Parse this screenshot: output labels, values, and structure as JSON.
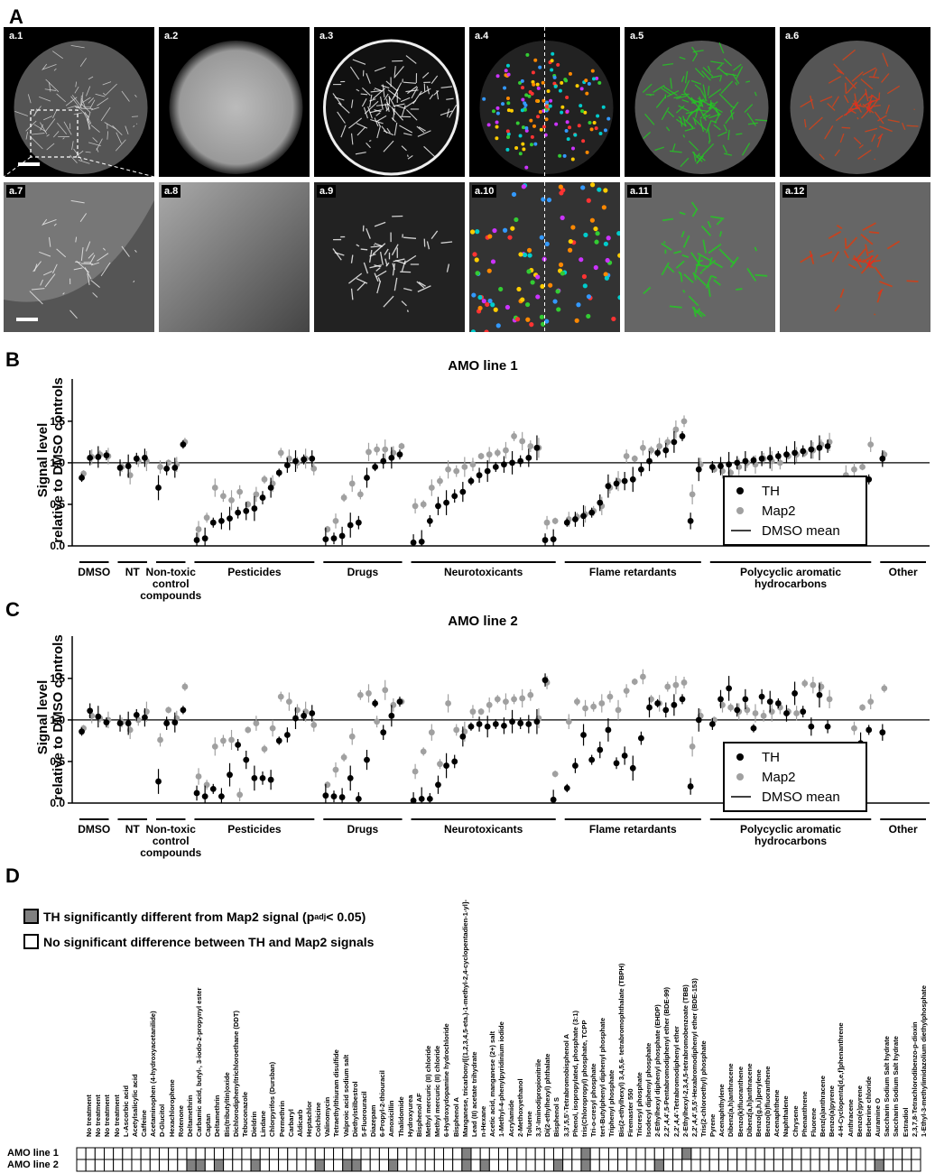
{
  "panel_a": {
    "letter": "A",
    "tiles_top": [
      "a.1",
      "a.2",
      "a.3",
      "a.4",
      "a.5",
      "a.6"
    ],
    "tiles_bottom": [
      "a.7",
      "a.8",
      "a.9",
      "a.10",
      "a.11",
      "a.12"
    ]
  },
  "panel_b": {
    "letter": "B",
    "title": "AMO line 1"
  },
  "panel_c": {
    "letter": "C",
    "title": "AMO line 2"
  },
  "panel_d": {
    "letter": "D",
    "legend_sig": "TH significantly different from Map2 signal (p",
    "legend_sig_sub": "adj",
    "legend_sig_end": " < 0.05)",
    "legend_nonsig": "No significant difference between TH and Map2 signals",
    "row1": "AMO line 1",
    "row2": "AMO line 2"
  },
  "ylabel_line1": "Signal level",
  "ylabel_line2": "relative to DMSO controls",
  "legend": {
    "th": "TH",
    "map2": "Map2",
    "dmso": "DMSO mean"
  },
  "colors": {
    "th": "#000000",
    "map2": "#a0a0a0",
    "sig": "#808080"
  },
  "groups": [
    {
      "label": "DMSO",
      "n": 4
    },
    {
      "label": "NT",
      "n": 4
    },
    {
      "label": "Non-toxic control compounds",
      "n": 4
    },
    {
      "label": "Pesticides",
      "n": 15
    },
    {
      "label": "Drugs",
      "n": 10
    },
    {
      "label": "Neurotoxicants",
      "n": 18
    },
    {
      "label": "Flame retardants",
      "n": 17
    },
    {
      "label": "Polycyclic aromatic hydrocarbons",
      "n": 20
    },
    {
      "label": "Other",
      "n": 6
    }
  ],
  "compounds": [
    "No treatment",
    "No treatment",
    "No treatment",
    "No treatment",
    "L-Ascorbic acid",
    "Acetylsalicylic acid",
    "Caffeine",
    "Acetaminophen (4-hydroxyacetanilide)",
    "D-Glucitol",
    "Hexachlorophene",
    "Rotenone",
    "Deltamethrin",
    "Carbamic acid, butyl-, 3-iodo-2-propynyl ester",
    "Captan",
    "Deltamethrin",
    "Bis(tributyltin)oxide",
    "Dichlorodiphenyltrichloroethane (DDT)",
    "Tebuconazole",
    "Dieldrin",
    "Lindane",
    "Chlorpyrifos (Dursban)",
    "Permethrin",
    "Carbaryl",
    "Aldicarb",
    "Heptachlor",
    "Colchicine",
    "Valinomycin",
    "Tetraethylthiuram disulfide",
    "Valproic acid sodium salt",
    "Diethylstilbestrol",
    "5-Fluorouracil",
    "Diazepam",
    "6-Propyl-2-thiouracil",
    "Amoxicillin",
    "Thalidomide",
    "Hydroxyurea",
    "Bisphenol AF",
    "Methyl mercuric (II) chloride",
    "Methyl mercuric (II) chloride",
    "6-Hydroxydopamine hydrochloride",
    "Bisphenol A",
    "Manganese, tricarbonyl[(1,2,3,4,5-eta.)-1-methyl-2,4-cyclopentadien-1-yl]-",
    "Lead (II) acetate trihydrate",
    "n-Hexane",
    "Acetic acid, manganese (2+) salt",
    "1-Methyl-4-phenylpyridinium iodide",
    "Acrylamide",
    "2-Methoxyethanol",
    "Toluene",
    "3,3'-Iminodipropionitrile",
    "Di(2-ethylhexyl) phthalate",
    "Bisphenol S",
    "3,3',5,5'-Tetrabromobisphenol A",
    "Phenol, isopropylated, phosphate (3:1)",
    "tris(Chloropropyl) phosphate, TCPP",
    "Tri-o-cresyl phosphate",
    "tert-Butylphenyl diphenyl phosphate",
    "Triphenyl phosphate",
    "Bis(2-ethylhexyl) 3,4,5,6- tetrabromophthalate (TBPH)",
    "Firemaster 550",
    "Tricresyl phosphate",
    "Isodecyl diphenyl phosphate",
    "2-Ethylhexyl diphenyl phosphate (EHDP)",
    "2,2',4,4',5-Pentabromodiphenyl ether (BDE-99)",
    "2,2',4,4'-Tetrabromodiphenyl ether",
    "2-Ethylhexyl-2,3,4,5-tetrabromobenzoate (TBB)",
    "2,2',4,4',5,5'-Hexabromodiphenyl ether (BDE-153)",
    "Tris(2-chloroethyl) phosphate",
    "Pyrene",
    "Acenaphthylene",
    "Dibenz(a,h)anthracene",
    "Benzo(k)fluoranthene",
    "Dibenz[a,h]anthracene",
    "Benzo[g,h,i]perylene",
    "Benzo(b)fluoranthene",
    "Acenaphthene",
    "Naphthalene",
    "Chrysene",
    "Phenanthrene",
    "Fluorene",
    "Benz(a)anthracene",
    "Benzo(a)pyrene",
    "4-H-Cyclopenta[d,e,f]phenanthrene",
    "Anthracene",
    "Benzo(e)pyrene",
    "Berberine chloride",
    "Auramine O",
    "Saccharin Sodium Salt hydrate",
    "Saccharin Sodium Salt hydrate",
    "Estradiol",
    "2,3,7,8-Tetrachlorodibenzo-p-dioxin",
    "1-Ethyl-3-methylimidazolium diethylphosphate"
  ],
  "sig_line1": [
    42,
    55,
    66
  ],
  "sig_line2": [
    12,
    13,
    15,
    19,
    26,
    29,
    30,
    34,
    42,
    44,
    52,
    55,
    63,
    87
  ],
  "chart_data": [
    {
      "type": "scatter",
      "title": "AMO line 1",
      "ylabel": "Signal level relative to DMSO controls",
      "ylim": [
        0,
        1.9
      ],
      "yticks": [
        0.0,
        0.5,
        1.0,
        1.5
      ],
      "reference_line": {
        "name": "DMSO mean",
        "y": 1.0
      },
      "series": [
        {
          "name": "TH",
          "values": [
            0.82,
            1.06,
            1.07,
            1.09,
            0.94,
            0.96,
            1.05,
            1.06,
            0.7,
            0.93,
            0.94,
            1.22,
            0.07,
            0.09,
            0.28,
            0.3,
            0.33,
            0.4,
            0.42,
            0.45,
            0.58,
            0.7,
            0.88,
            0.97,
            1.02,
            1.04,
            1.05,
            0.08,
            0.09,
            0.12,
            0.25,
            0.28,
            0.82,
            0.95,
            1.02,
            1.06,
            1.1,
            0.04,
            0.05,
            0.3,
            0.48,
            0.52,
            0.6,
            0.65,
            0.78,
            0.85,
            0.9,
            0.95,
            0.98,
            1.0,
            1.02,
            1.06,
            1.18,
            0.07,
            0.08,
            0.28,
            0.32,
            0.36,
            0.4,
            0.52,
            0.72,
            0.75,
            0.78,
            0.8,
            0.92,
            1.02,
            1.12,
            1.15,
            1.25,
            1.32,
            0.3,
            0.92,
            0.95,
            0.96,
            0.98,
            1.0,
            1.02,
            1.03,
            1.05,
            1.06,
            1.08,
            1.1,
            1.12,
            1.14,
            1.16,
            1.18,
            1.2,
            0.05,
            0.22,
            0.45,
            0.62,
            0.8,
            1.05
          ]
        },
        {
          "name": "Map2",
          "values": [
            0.87,
            1.07,
            1.1,
            1.08,
            0.95,
            0.85,
            1.02,
            1.02,
            0.95,
            1.0,
            0.98,
            1.25,
            0.2,
            0.34,
            0.7,
            0.6,
            0.55,
            0.65,
            0.5,
            0.62,
            0.8,
            0.75,
            1.12,
            1.05,
            1.0,
            1.05,
            0.93,
            0.2,
            0.3,
            0.58,
            0.75,
            0.62,
            1.13,
            1.16,
            1.16,
            1.12,
            1.2,
            0.48,
            0.5,
            0.7,
            0.78,
            0.92,
            0.9,
            0.95,
            0.98,
            1.08,
            1.1,
            1.12,
            1.15,
            1.32,
            1.26,
            1.2,
            1.18,
            0.28,
            0.3,
            0.32,
            0.35,
            0.38,
            0.42,
            0.48,
            0.7,
            0.78,
            1.08,
            1.05,
            1.18,
            1.15,
            1.2,
            1.25,
            1.4,
            1.5,
            0.62,
            0.98,
            0.92,
            0.9,
            0.88,
            0.95,
            1.0,
            0.98,
            1.05,
            1.02,
            1.0,
            1.08,
            1.1,
            1.12,
            1.15,
            1.22,
            1.25,
            0.18,
            0.85,
            0.92,
            0.95,
            1.22,
            1.1
          ]
        }
      ]
    },
    {
      "type": "scatter",
      "title": "AMO line 2",
      "ylabel": "Signal level relative to DMSO controls",
      "ylim": [
        0,
        1.9
      ],
      "yticks": [
        0.0,
        0.5,
        1.0,
        1.5
      ],
      "reference_line": {
        "name": "DMSO mean",
        "y": 1.0
      },
      "series": [
        {
          "name": "TH",
          "values": [
            0.86,
            1.11,
            1.04,
            0.97,
            0.96,
            0.96,
            1.06,
            1.03,
            0.26,
            0.96,
            0.97,
            1.12,
            0.12,
            0.08,
            0.17,
            0.08,
            0.34,
            0.7,
            0.52,
            0.3,
            0.3,
            0.28,
            0.75,
            0.82,
            1.02,
            1.05,
            1.08,
            0.09,
            0.08,
            0.07,
            0.3,
            0.05,
            0.52,
            1.2,
            0.85,
            1.05,
            1.22,
            0.03,
            0.05,
            0.05,
            0.22,
            0.45,
            0.5,
            0.8,
            0.92,
            0.95,
            0.92,
            0.95,
            0.93,
            0.98,
            0.96,
            0.95,
            0.98,
            1.48,
            0.04,
            0.18,
            0.45,
            0.82,
            0.52,
            0.64,
            0.88,
            0.48,
            0.57,
            0.42,
            0.78,
            1.15,
            1.2,
            1.12,
            1.18,
            1.25,
            0.2,
            1.0,
            0.95,
            1.25,
            1.38,
            1.12,
            1.25,
            0.9,
            1.28,
            1.22,
            1.2,
            1.08,
            1.32,
            1.1,
            0.92,
            1.3,
            0.92,
            0.05,
            0.1,
            0.31,
            0.72,
            0.88,
            0.85
          ]
        },
        {
          "name": "Map2",
          "values": [
            0.9,
            1.05,
            1.02,
            1.0,
            0.97,
            0.88,
            1.0,
            1.1,
            0.76,
            1.12,
            1.02,
            1.4,
            0.32,
            0.22,
            0.68,
            0.75,
            0.76,
            0.1,
            0.88,
            0.96,
            0.65,
            0.9,
            1.28,
            1.22,
            1.12,
            1.1,
            0.94,
            0.22,
            0.4,
            0.55,
            0.8,
            1.3,
            1.32,
            0.98,
            1.36,
            1.18,
            1.22,
            0.38,
            0.62,
            0.85,
            0.47,
            1.2,
            0.88,
            0.86,
            1.1,
            1.1,
            1.18,
            1.25,
            1.22,
            1.25,
            1.26,
            1.3,
            1.02,
            1.45,
            0.35,
            0.98,
            1.22,
            1.14,
            1.16,
            1.2,
            1.28,
            1.12,
            1.35,
            1.46,
            1.52,
            1.25,
            1.2,
            1.4,
            1.42,
            1.45,
            0.68,
            1.05,
            1.0,
            1.18,
            1.15,
            1.1,
            1.12,
            1.08,
            1.05,
            1.1,
            1.15,
            1.1,
            1.08,
            1.44,
            1.42,
            1.4,
            1.25,
            0.05,
            0.42,
            0.9,
            1.15,
            1.22,
            1.38
          ]
        }
      ]
    }
  ]
}
